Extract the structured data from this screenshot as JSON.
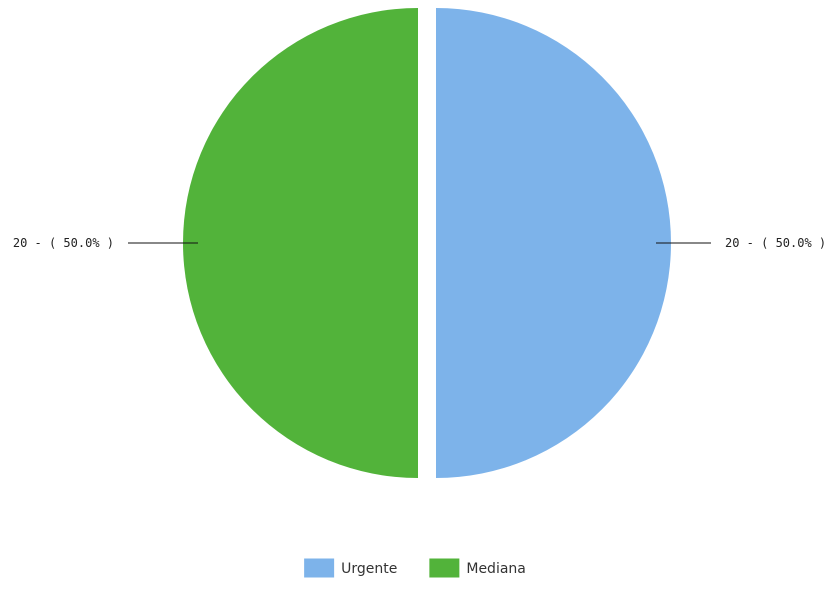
{
  "chart_data": {
    "type": "pie",
    "slices": [
      {
        "label": "Urgente",
        "value": 20,
        "percent": 50.0,
        "display": "20 - ( 50.0% )",
        "color": "#7db3ea"
      },
      {
        "label": "Mediana",
        "value": 20,
        "percent": 50.0,
        "display": "20 - ( 50.0% )",
        "color": "#52b33a"
      }
    ],
    "legend": {
      "position": "bottom",
      "items": [
        "Urgente",
        "Mediana"
      ]
    }
  }
}
